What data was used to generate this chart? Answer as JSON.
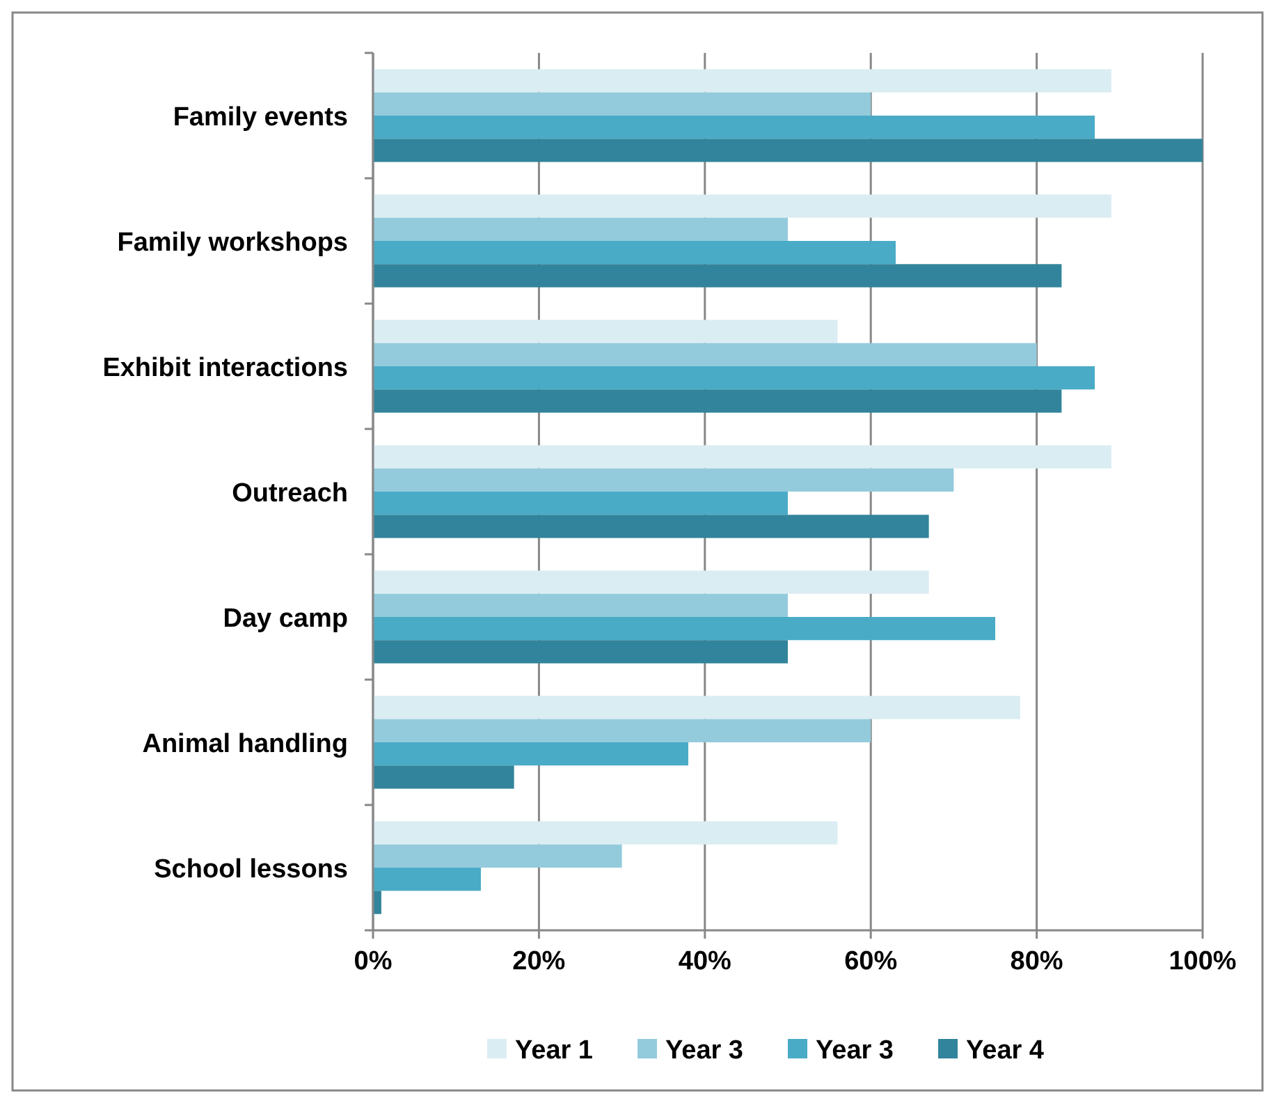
{
  "chart_data": {
    "type": "bar",
    "orientation": "horizontal",
    "categories": [
      "Family events",
      "Family workshops",
      "Exhibit interactions",
      "Outreach",
      "Day camp",
      "Animal handling",
      "School lessons"
    ],
    "series": [
      {
        "name": "Year 1",
        "color": "#daedf3",
        "values": [
          89,
          89,
          56,
          89,
          67,
          78,
          56
        ]
      },
      {
        "name": "Year 3",
        "color": "#93cbdc",
        "values": [
          60,
          50,
          80,
          70,
          50,
          60,
          30
        ]
      },
      {
        "name": "Year 3",
        "color": "#4aabc6",
        "values": [
          87,
          63,
          87,
          50,
          75,
          38,
          13
        ]
      },
      {
        "name": "Year 4",
        "color": "#31849b",
        "values": [
          100,
          83,
          83,
          67,
          50,
          17,
          1
        ]
      }
    ],
    "xlim": [
      0,
      100
    ],
    "xticks": [
      {
        "value": 0,
        "label": "0%"
      },
      {
        "value": 20,
        "label": "20%"
      },
      {
        "value": 40,
        "label": "40%"
      },
      {
        "value": 60,
        "label": "60%"
      },
      {
        "value": 80,
        "label": "80%"
      },
      {
        "value": 100,
        "label": "100%"
      }
    ],
    "grid": "x",
    "legend": "bottom"
  }
}
